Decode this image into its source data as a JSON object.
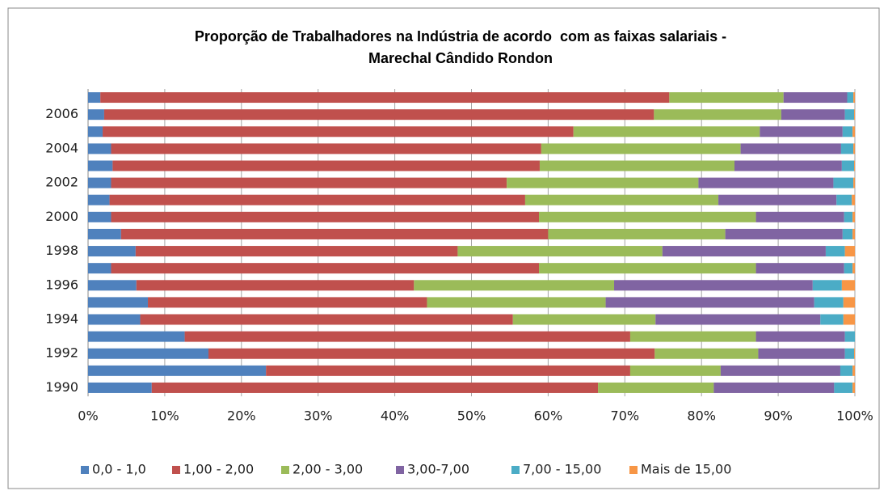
{
  "chart_data": {
    "type": "stacked-barh",
    "title": "Proporção de Trabalhadores na Indústria de acordo  com as faixas salariais - Marechal Cândido Rondon",
    "categories": [
      "1990",
      null,
      "1992",
      null,
      "1994",
      null,
      "1996",
      null,
      "1998",
      null,
      "2000",
      null,
      "2002",
      null,
      "2004",
      null,
      "2006",
      null
    ],
    "series": [
      {
        "name": "0,0 - 1,0",
        "color": "#4f81bd",
        "values": [
          8.3,
          23.2,
          15.7,
          12.6,
          6.8,
          7.8,
          6.3,
          3.0,
          6.2,
          4.3,
          3.0,
          2.8,
          3.0,
          3.2,
          3.0,
          1.9,
          2.1,
          1.6
        ]
      },
      {
        "name": "1,00 - 2,00",
        "color": "#c0504d",
        "values": [
          58.2,
          47.5,
          58.2,
          58.1,
          48.6,
          36.4,
          36.2,
          55.8,
          42.0,
          55.7,
          55.8,
          54.2,
          51.6,
          55.7,
          56.1,
          61.4,
          71.7,
          74.2
        ]
      },
      {
        "name": "2,00 - 3,00",
        "color": "#9bbb59",
        "values": [
          15.1,
          11.8,
          13.5,
          16.4,
          18.6,
          23.3,
          26.1,
          28.3,
          26.7,
          23.1,
          28.3,
          25.2,
          25.0,
          25.4,
          26.0,
          24.3,
          16.6,
          14.9
        ]
      },
      {
        "name": "3,00-7,00",
        "color": "#8064a2",
        "values": [
          15.7,
          15.6,
          11.3,
          11.6,
          21.5,
          27.2,
          25.9,
          11.5,
          21.3,
          15.3,
          11.5,
          15.4,
          17.6,
          14.0,
          13.1,
          10.8,
          8.3,
          8.3
        ]
      },
      {
        "name": "7,00 - 15,00",
        "color": "#4bacc6",
        "values": [
          2.4,
          1.6,
          1.2,
          1.3,
          3.0,
          3.8,
          3.8,
          1.1,
          2.5,
          1.3,
          1.1,
          2.0,
          2.6,
          1.6,
          1.6,
          1.3,
          1.2,
          0.8
        ]
      },
      {
        "name": "Mais de 15,00",
        "color": "#f79646",
        "values": [
          0.3,
          0.3,
          0.1,
          0.0,
          1.5,
          1.5,
          1.7,
          0.3,
          1.3,
          0.3,
          0.3,
          0.4,
          0.2,
          0.1,
          0.2,
          0.3,
          0.1,
          0.2
        ]
      }
    ],
    "xlim": [
      0,
      100
    ],
    "xticks": [
      {
        "value": 0,
        "label": "0%"
      },
      {
        "value": 10,
        "label": "10%"
      },
      {
        "value": 20,
        "label": "20%"
      },
      {
        "value": 30,
        "label": "30%"
      },
      {
        "value": 40,
        "label": "40%"
      },
      {
        "value": 50,
        "label": "50%"
      },
      {
        "value": 60,
        "label": "60%"
      },
      {
        "value": 70,
        "label": "70%"
      },
      {
        "value": 80,
        "label": "80%"
      },
      {
        "value": 90,
        "label": "90%"
      },
      {
        "value": 100,
        "label": "100%"
      }
    ],
    "grid": true,
    "legend": "bottom"
  }
}
